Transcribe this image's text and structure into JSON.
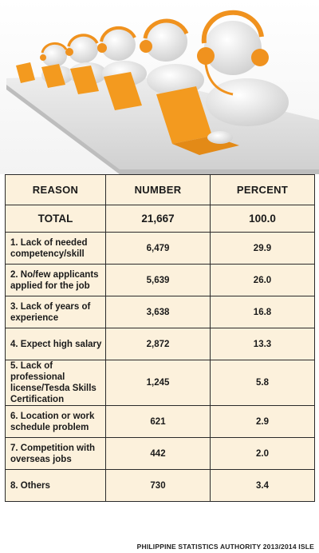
{
  "chart_data": {
    "type": "table",
    "columns": [
      "REASON",
      "NUMBER",
      "PERCENT"
    ],
    "total": {
      "label": "TOTAL",
      "number": "21,667",
      "percent": "100.0"
    },
    "rows": [
      {
        "reason": "1.  Lack of needed competency/skill",
        "number": "6,479",
        "percent": "29.9"
      },
      {
        "reason": "2. No/few applicants applied for the job",
        "number": "5,639",
        "percent": "26.0"
      },
      {
        "reason": "3. Lack of years of experience",
        "number": "3,638",
        "percent": "16.8"
      },
      {
        "reason": "4. Expect high salary",
        "number": "2,872",
        "percent": "13.3"
      },
      {
        "reason": "5. Lack of professional license/Tesda Skills Certification",
        "number": "1,245",
        "percent": "5.8"
      },
      {
        "reason": "6. Location or work schedule problem",
        "number": "621",
        "percent": "2.9"
      },
      {
        "reason": "7. Competition with overseas jobs",
        "number": "442",
        "percent": "2.0"
      },
      {
        "reason": "8. Others",
        "number": "730",
        "percent": "3.4"
      }
    ]
  },
  "source": "PHILIPPINE STATISTICS AUTHORITY 2013/2014 ISLE",
  "illustration": {
    "icon": "call-center-agents-icon",
    "colors": {
      "headset": "#f0921e",
      "laptop": "#f39a1f",
      "figure": "#f4f4f4",
      "desk": "#d9d9d9"
    }
  },
  "colors": {
    "table_bg": "#fcf1dc",
    "border": "#2a2a2a"
  }
}
